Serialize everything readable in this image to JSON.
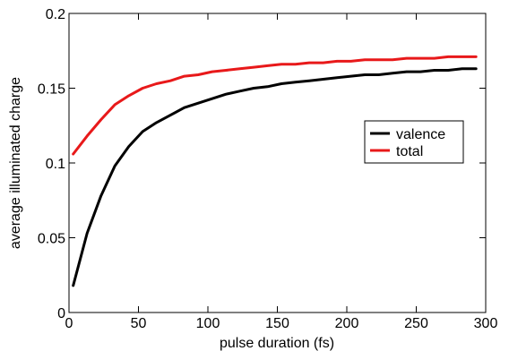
{
  "chart_data": {
    "type": "line",
    "xlabel": "pulse duration (fs)",
    "ylabel": "average illuminated charge",
    "xlim": [
      0,
      300
    ],
    "ylim": [
      0,
      0.2
    ],
    "x_ticks": [
      0,
      50,
      100,
      150,
      200,
      250,
      300
    ],
    "x_tick_labels": [
      "0",
      "50",
      "100",
      "150",
      "200",
      "250",
      "300"
    ],
    "y_ticks": [
      0,
      0.05,
      0.1,
      0.15,
      0.2
    ],
    "y_tick_labels": [
      "0",
      "0.05",
      "0.1",
      "0.15",
      "0.2"
    ],
    "grid": false,
    "legend_position": "right",
    "series": [
      {
        "name": "valence",
        "color": "#000000",
        "x": [
          3,
          13,
          23,
          33,
          43,
          53,
          63,
          73,
          83,
          93,
          103,
          113,
          123,
          133,
          143,
          153,
          163,
          173,
          183,
          193,
          203,
          213,
          223,
          233,
          243,
          253,
          263,
          273,
          283,
          293
        ],
        "y": [
          0.018,
          0.053,
          0.078,
          0.098,
          0.111,
          0.121,
          0.127,
          0.132,
          0.137,
          0.14,
          0.143,
          0.146,
          0.148,
          0.15,
          0.151,
          0.153,
          0.154,
          0.155,
          0.156,
          0.157,
          0.158,
          0.159,
          0.159,
          0.16,
          0.161,
          0.161,
          0.162,
          0.162,
          0.163,
          0.163
        ]
      },
      {
        "name": "total",
        "color": "#e8191a",
        "x": [
          3,
          13,
          23,
          33,
          43,
          53,
          63,
          73,
          83,
          93,
          103,
          113,
          123,
          133,
          143,
          153,
          163,
          173,
          183,
          193,
          203,
          213,
          223,
          233,
          243,
          253,
          263,
          273,
          283,
          293
        ],
        "y": [
          0.106,
          0.118,
          0.129,
          0.139,
          0.145,
          0.15,
          0.153,
          0.155,
          0.158,
          0.159,
          0.161,
          0.162,
          0.163,
          0.164,
          0.165,
          0.166,
          0.166,
          0.167,
          0.167,
          0.168,
          0.168,
          0.169,
          0.169,
          0.169,
          0.17,
          0.17,
          0.17,
          0.171,
          0.171,
          0.171
        ]
      }
    ]
  }
}
